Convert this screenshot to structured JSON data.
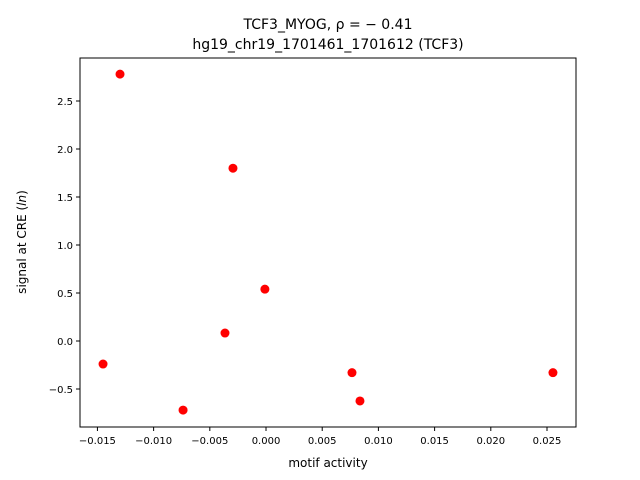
{
  "chart_data": {
    "type": "scatter",
    "title_line1": "TCF3_MYOG, ρ = − 0.41",
    "title_line2": "hg19_chr19_1701461_1701612 (TCF3)",
    "xlabel": "motif activity",
    "ylabel": "signal at CRE (ln)",
    "xlim": [
      -0.01655,
      0.02758
    ],
    "ylim": [
      -0.896,
      2.948
    ],
    "xticks": [
      -0.015,
      -0.01,
      -0.005,
      0.0,
      0.005,
      0.01,
      0.015,
      0.02,
      0.025
    ],
    "xtick_labels": [
      "−0.015",
      "−0.010",
      "−0.005",
      "0.000",
      "0.005",
      "0.010",
      "0.015",
      "0.020",
      "0.025"
    ],
    "yticks": [
      -0.5,
      0.0,
      0.5,
      1.0,
      1.5,
      2.0,
      2.5
    ],
    "ytick_labels": [
      "−0.5",
      "0.0",
      "0.5",
      "1.0",
      "1.5",
      "2.0",
      "2.5"
    ],
    "grid": false,
    "point_color": "#ff0000",
    "points": [
      {
        "x": -0.01299,
        "y": 2.78
      },
      {
        "x": -0.00294,
        "y": 1.8
      },
      {
        "x": -0.0001,
        "y": 0.54
      },
      {
        "x": -0.00365,
        "y": 0.083
      },
      {
        "x": -0.0145,
        "y": -0.24
      },
      {
        "x": -0.00738,
        "y": -0.72
      },
      {
        "x": 0.00765,
        "y": -0.33
      },
      {
        "x": 0.00836,
        "y": -0.625
      },
      {
        "x": 0.02553,
        "y": -0.33
      }
    ]
  }
}
